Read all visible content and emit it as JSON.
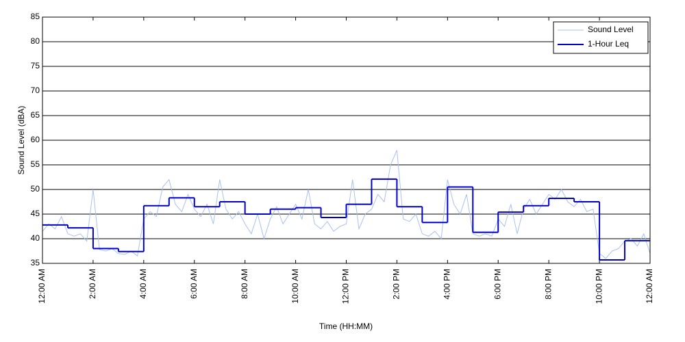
{
  "chart_data": {
    "type": "line",
    "xlabel": "Time (HH:MM)",
    "ylabel": "Sound Level (dBA)",
    "xlim": [
      0,
      24
    ],
    "ylim": [
      35,
      85
    ],
    "xticks": [
      {
        "value": 0,
        "label": "12:00 AM"
      },
      {
        "value": 2,
        "label": "2:00 AM"
      },
      {
        "value": 4,
        "label": "4:00 AM"
      },
      {
        "value": 6,
        "label": "6:00 AM"
      },
      {
        "value": 8,
        "label": "8:00 AM"
      },
      {
        "value": 10,
        "label": "10:00 AM"
      },
      {
        "value": 12,
        "label": "12:00 PM"
      },
      {
        "value": 14,
        "label": "2:00 PM"
      },
      {
        "value": 16,
        "label": "4:00 PM"
      },
      {
        "value": 18,
        "label": "6:00 PM"
      },
      {
        "value": 20,
        "label": "8:00 PM"
      },
      {
        "value": 22,
        "label": "10:00 PM"
      },
      {
        "value": 24,
        "label": "12:00 AM"
      }
    ],
    "yticks": [
      35,
      40,
      45,
      50,
      55,
      60,
      65,
      70,
      75,
      80,
      85
    ],
    "grid": true,
    "legend": "upper right",
    "series": [
      {
        "name": "Sound Level",
        "color": "#a8c0f0",
        "width": 1,
        "step": false,
        "x": [
          0,
          0.25,
          0.5,
          0.75,
          1,
          1.25,
          1.5,
          1.75,
          2,
          2.25,
          2.5,
          2.75,
          3,
          3.25,
          3.5,
          3.75,
          4,
          4.25,
          4.5,
          4.75,
          5,
          5.25,
          5.5,
          5.75,
          6,
          6.25,
          6.5,
          6.75,
          7,
          7.25,
          7.5,
          7.75,
          8,
          8.25,
          8.5,
          8.75,
          9,
          9.25,
          9.5,
          9.75,
          10,
          10.25,
          10.5,
          10.75,
          11,
          11.25,
          11.5,
          11.75,
          12,
          12.25,
          12.5,
          12.75,
          13,
          13.25,
          13.5,
          13.75,
          14,
          14.25,
          14.5,
          14.75,
          15,
          15.25,
          15.5,
          15.75,
          16,
          16.25,
          16.5,
          16.75,
          17,
          17.25,
          17.5,
          17.75,
          18,
          18.25,
          18.5,
          18.75,
          19,
          19.25,
          19.5,
          19.75,
          20,
          20.25,
          20.5,
          20.75,
          21,
          21.25,
          21.5,
          21.75,
          22,
          22.25,
          22.5,
          22.75,
          23,
          23.25,
          23.5,
          23.75,
          24
        ],
        "values": [
          41.5,
          43,
          42,
          44.5,
          41,
          40.5,
          41,
          39.5,
          50,
          37.8,
          37.5,
          38,
          37,
          36.8,
          37.5,
          36.5,
          44,
          45.5,
          44.5,
          50.5,
          52,
          47,
          45.5,
          49,
          46,
          44.5,
          47,
          43,
          52,
          46,
          44,
          45.5,
          43,
          41,
          45,
          40,
          44,
          46.5,
          43,
          45,
          47,
          44,
          50,
          43,
          42,
          43.5,
          41.5,
          42.5,
          43,
          52,
          42,
          45,
          46,
          49,
          47.5,
          55,
          58,
          44,
          43.5,
          45,
          41,
          40.5,
          41.5,
          40,
          52,
          47,
          45,
          49,
          41,
          40.5,
          41,
          40.5,
          44,
          42.5,
          47,
          41,
          46,
          48,
          45,
          47,
          49,
          48,
          50,
          47.5,
          46.5,
          48,
          45.5,
          46,
          37,
          36,
          37.5,
          38,
          39.5,
          40,
          38.5,
          41,
          37
        ]
      },
      {
        "name": "1-Hour Leq",
        "color": "#0000cc",
        "width": 2,
        "step": true,
        "x": [
          0,
          1,
          2,
          3,
          4,
          5,
          6,
          7,
          8,
          9,
          10,
          11,
          12,
          13,
          14,
          15,
          16,
          17,
          18,
          19,
          20,
          21,
          22,
          23
        ],
        "values": [
          42.8,
          42.2,
          38.0,
          37.4,
          46.7,
          48.3,
          46.5,
          47.5,
          45.0,
          46.0,
          46.3,
          44.3,
          47.0,
          52.1,
          46.5,
          43.3,
          50.5,
          41.3,
          45.4,
          46.7,
          48.2,
          47.5,
          35.7,
          39.6
        ]
      }
    ]
  }
}
